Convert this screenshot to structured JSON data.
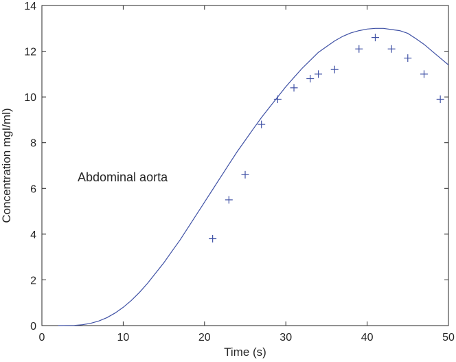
{
  "chart_data": {
    "type": "line",
    "xlabel": "Time (s)",
    "ylabel": "Concentration mgI/ml)",
    "xlim": [
      0,
      50
    ],
    "ylim": [
      0,
      14
    ],
    "xticks": [
      0,
      10,
      20,
      30,
      40,
      50
    ],
    "yticks": [
      0,
      2,
      4,
      6,
      8,
      10,
      12,
      14
    ],
    "grid": false,
    "annotation": "Abdominal aorta",
    "series": [
      {
        "style": "line",
        "color": "#3f51a5",
        "x": [
          2,
          4,
          5,
          6,
          7,
          8,
          9,
          10,
          11,
          12,
          13,
          14,
          15,
          16,
          17,
          18,
          19,
          20,
          21,
          22,
          23,
          24,
          25,
          26,
          27,
          28,
          29,
          30,
          31,
          32,
          33,
          34,
          35,
          36,
          37,
          38,
          39,
          40,
          41,
          42,
          43,
          44,
          45,
          46,
          47,
          48,
          49,
          50
        ],
        "y": [
          0,
          0.01,
          0.04,
          0.1,
          0.2,
          0.35,
          0.55,
          0.8,
          1.1,
          1.45,
          1.85,
          2.3,
          2.75,
          3.25,
          3.75,
          4.3,
          4.85,
          5.4,
          5.95,
          6.5,
          7.05,
          7.6,
          8.1,
          8.6,
          9.1,
          9.55,
          10.0,
          10.45,
          10.85,
          11.25,
          11.6,
          11.95,
          12.2,
          12.45,
          12.65,
          12.8,
          12.9,
          12.97,
          13.0,
          13.0,
          12.95,
          12.9,
          12.78,
          12.55,
          12.3,
          12.0,
          11.7,
          11.4
        ]
      },
      {
        "style": "markers",
        "marker": "+",
        "color": "#3f51a5",
        "x": [
          21,
          23,
          25,
          27,
          29,
          31,
          33,
          34,
          36,
          39,
          41,
          43,
          45,
          47,
          49
        ],
        "y": [
          3.8,
          5.5,
          6.6,
          8.8,
          9.9,
          10.4,
          10.8,
          11.0,
          11.2,
          12.1,
          12.6,
          12.1,
          11.7,
          11.0,
          9.9
        ]
      }
    ]
  }
}
